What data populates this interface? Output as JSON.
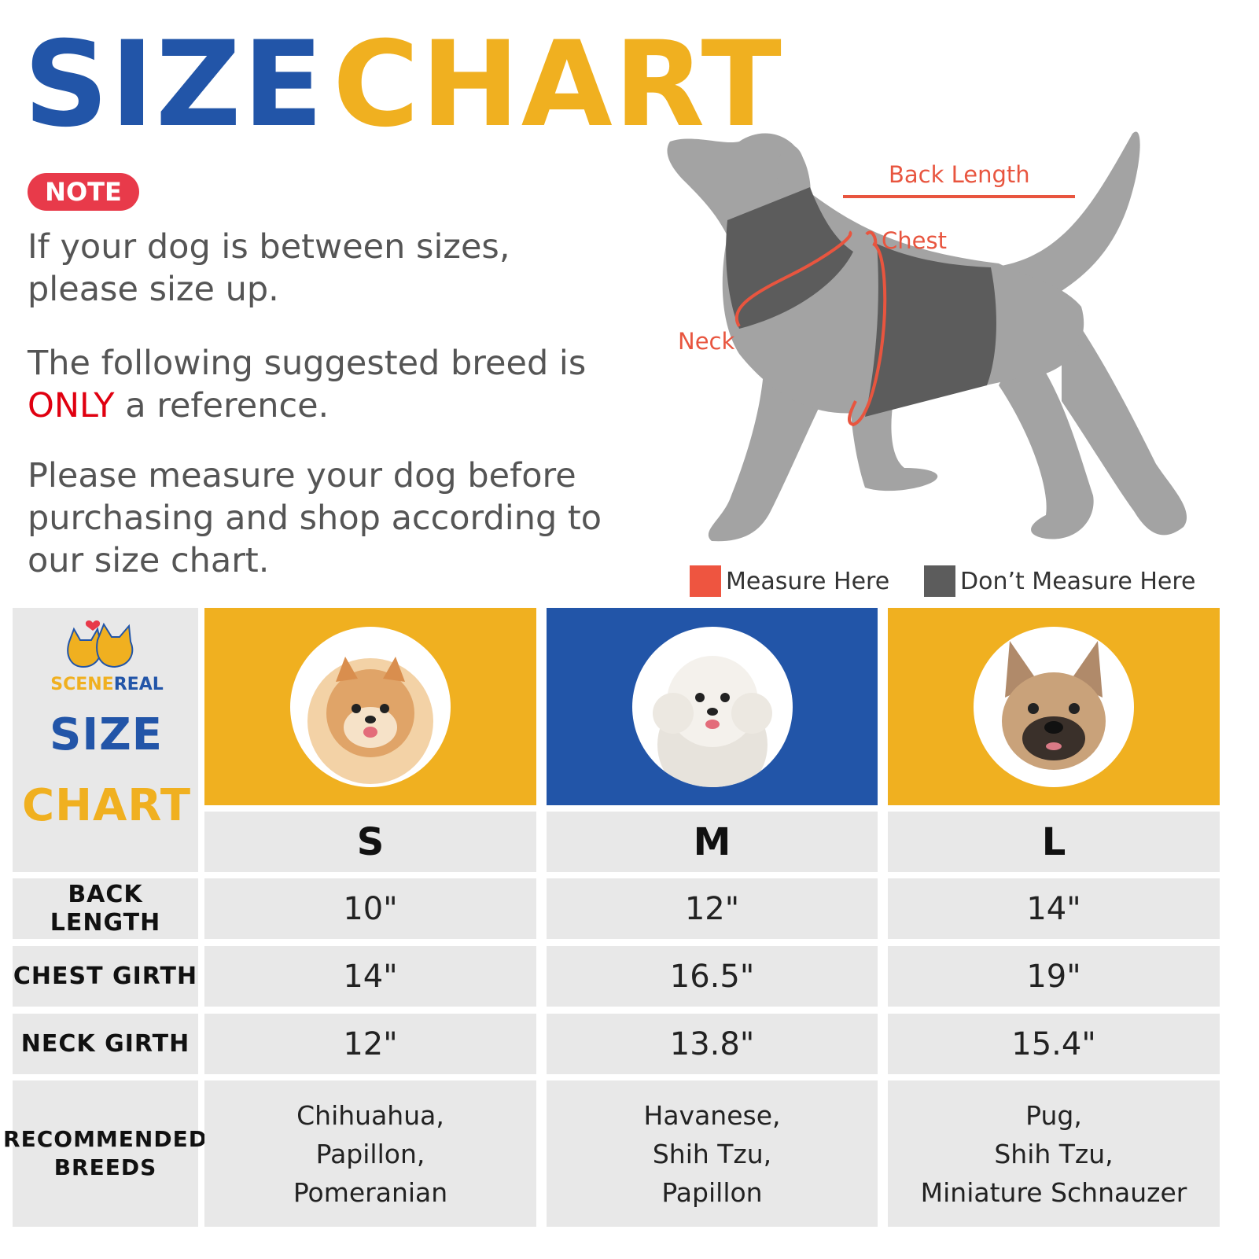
{
  "title": {
    "part1": "SIZE",
    "part2": "CHART"
  },
  "note": {
    "badge": "NOTE",
    "para1": "If your dog is between sizes, please size up.",
    "para2_prefix": "The following suggested breed is ",
    "para2_highlight": "ONLY",
    "para2_suffix": " a reference.",
    "para3": "Please measure your dog before purchasing and shop according to our size chart."
  },
  "diagram": {
    "back_length": "Back Length",
    "chest": "Chest",
    "neck": "Neck"
  },
  "legend": [
    {
      "label": "Measure Here",
      "color": "#ee5540"
    },
    {
      "label": "Don’t Measure Here",
      "color": "#5c5c5c"
    }
  ],
  "colors": {
    "blue": "#2255a8",
    "yellow": "#f0b020",
    "cell": "#e8e8e8",
    "note_red": "#e83a4a"
  },
  "corner": {
    "brand_part1": "SCENE",
    "brand_part2": "REAL",
    "size": "SIZE",
    "chart": "CHART"
  },
  "sizes": [
    {
      "label": "S",
      "header_color": "#f0b020",
      "photo": "pomeranian-photo"
    },
    {
      "label": "M",
      "header_color": "#2255a8",
      "photo": "poodle-photo"
    },
    {
      "label": "L",
      "header_color": "#f0b020",
      "photo": "french-bulldog-photo"
    }
  ],
  "rows": [
    {
      "label": "BACK LENGTH",
      "values": [
        "10\"",
        "12\"",
        "14\""
      ]
    },
    {
      "label": "CHEST GIRTH",
      "values": [
        "14\"",
        "16.5\"",
        "19\""
      ]
    },
    {
      "label": "NECK GIRTH",
      "values": [
        "12\"",
        "13.8\"",
        "15.4\""
      ]
    },
    {
      "label": "RECOMMENDED\nBREEDS",
      "values": [
        "Chihuahua,\nPapillon,\nPomeranian",
        "Havanese,\nShih Tzu,\nPapillon",
        "Pug,\nShih Tzu,\nMiniature Schnauzer"
      ]
    }
  ]
}
